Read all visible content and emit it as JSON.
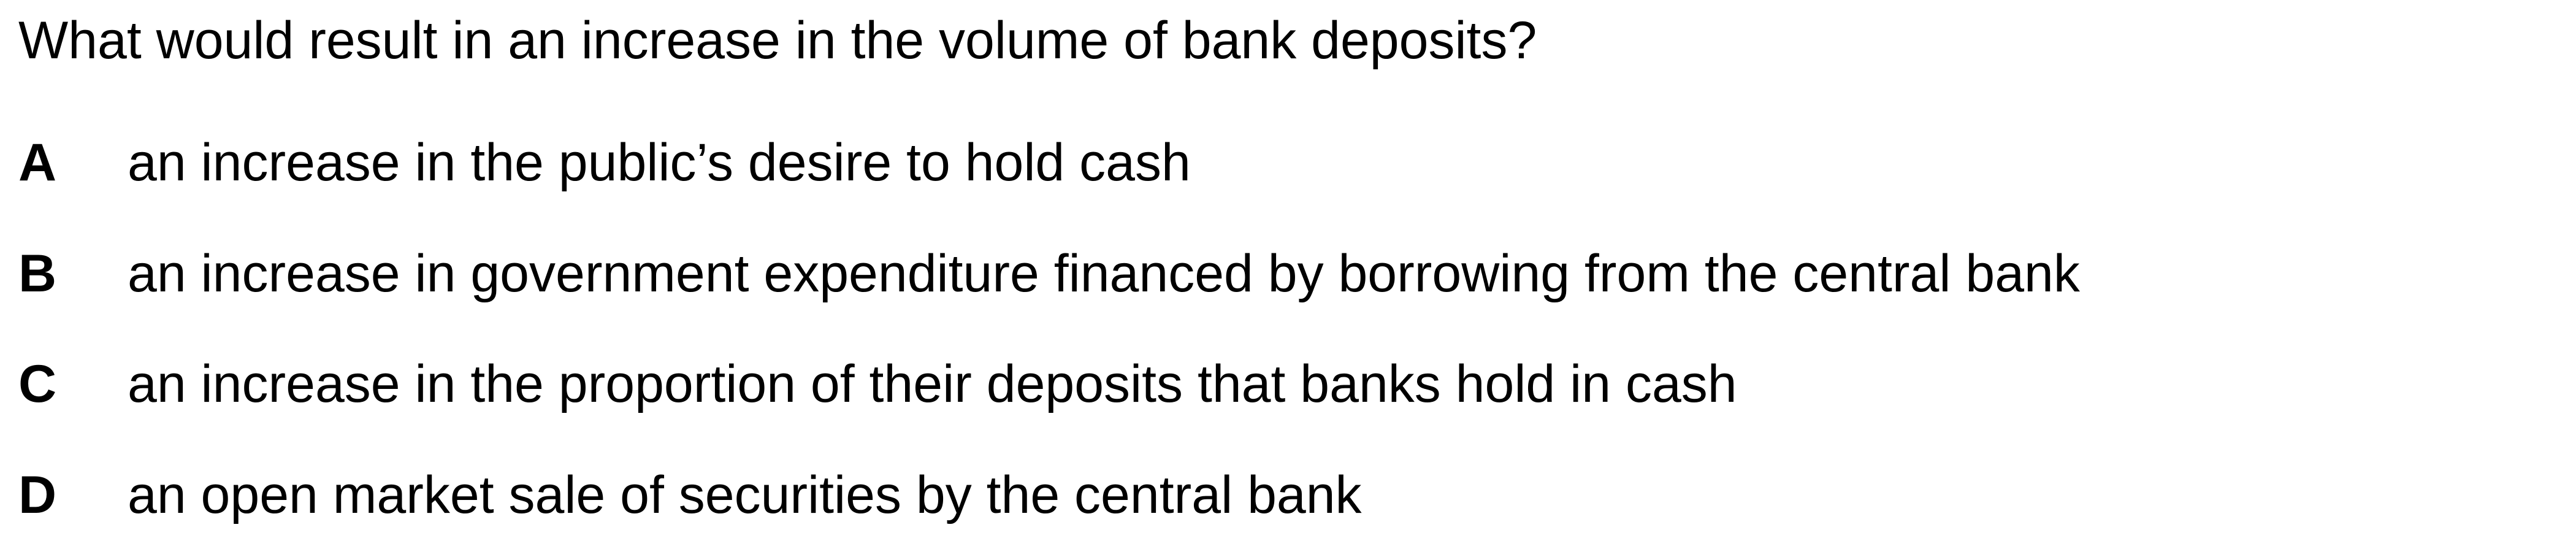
{
  "question": "What would result in an increase in the volume of bank deposits?",
  "options": [
    {
      "letter": "A",
      "text": "an increase in the public’s desire to hold cash"
    },
    {
      "letter": "B",
      "text": "an increase in government expenditure financed by borrowing from the central bank"
    },
    {
      "letter": "C",
      "text": "an increase in the proportion of their deposits that banks hold in cash"
    },
    {
      "letter": "D",
      "text": "an open market sale of securities by the central bank"
    }
  ]
}
